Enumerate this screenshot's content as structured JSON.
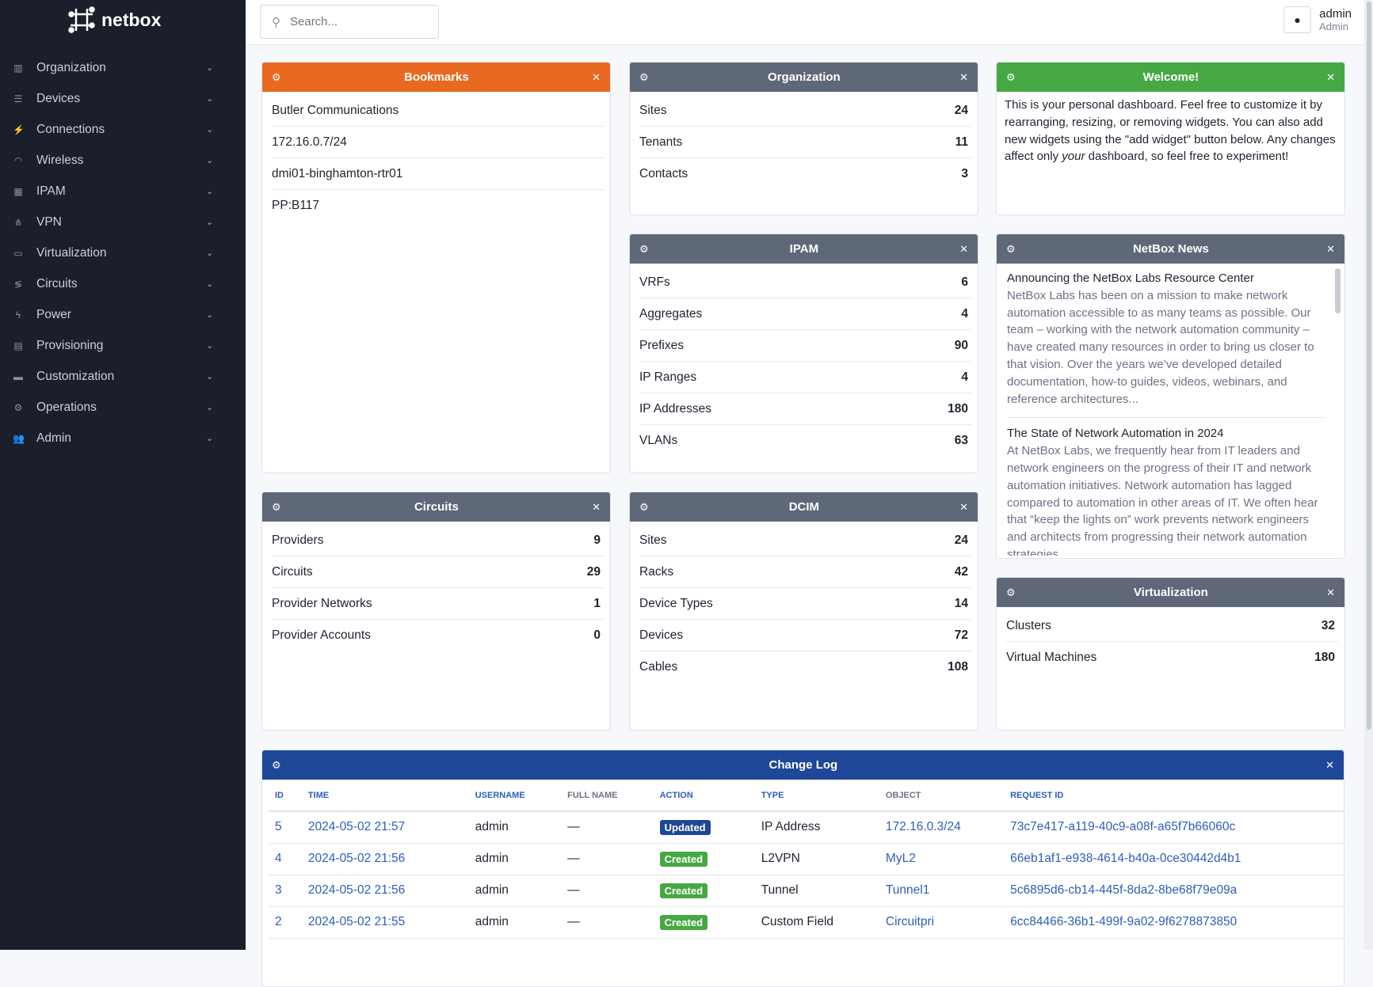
{
  "brand": {
    "name": "netbox"
  },
  "colors": {
    "sidebar": "#1b1f2b",
    "orange": "#e8691f",
    "gray": "#5f6878",
    "green": "#46a843",
    "blue": "#1f4797",
    "created": "#46a843",
    "updated": "#1f4797"
  },
  "sidebar": {
    "items": [
      {
        "label": "Organization",
        "icon": "building-icon",
        "glyph": "▥"
      },
      {
        "label": "Devices",
        "icon": "server-icon",
        "glyph": "☰"
      },
      {
        "label": "Connections",
        "icon": "plug-icon",
        "glyph": "⚡"
      },
      {
        "label": "Wireless",
        "icon": "wifi-icon",
        "glyph": "◠"
      },
      {
        "label": "IPAM",
        "icon": "ip-icon",
        "glyph": "▦"
      },
      {
        "label": "VPN",
        "icon": "network-icon",
        "glyph": "⋔"
      },
      {
        "label": "Virtualization",
        "icon": "monitor-icon",
        "glyph": "▭"
      },
      {
        "label": "Circuits",
        "icon": "circuit-icon",
        "glyph": "≶"
      },
      {
        "label": "Power",
        "icon": "power-icon",
        "glyph": "ϟ"
      },
      {
        "label": "Provisioning",
        "icon": "file-icon",
        "glyph": "▤"
      },
      {
        "label": "Customization",
        "icon": "toolbox-icon",
        "glyph": "▬"
      },
      {
        "label": "Operations",
        "icon": "cogs-icon",
        "glyph": "⚙"
      },
      {
        "label": "Admin",
        "icon": "users-icon",
        "glyph": "👥"
      }
    ]
  },
  "header": {
    "search_placeholder": "Search...",
    "username": "admin",
    "role": "Admin"
  },
  "widgets": {
    "bookmarks": {
      "title": "Bookmarks",
      "items": [
        "Butler Communications",
        "172.16.0.7/24",
        "dmi01-binghamton-rtr01",
        "PP:B117"
      ]
    },
    "organization": {
      "title": "Organization",
      "rows": [
        {
          "k": "Sites",
          "v": "24"
        },
        {
          "k": "Tenants",
          "v": "11"
        },
        {
          "k": "Contacts",
          "v": "3"
        }
      ]
    },
    "welcome": {
      "title": "Welcome!",
      "text_a": "This is your personal dashboard. Feel free to customize it by rearranging, resizing, or removing widgets. You can also add new widgets using the \"add widget\" button below. Any changes affect only ",
      "text_em": "your",
      "text_b": " dashboard, so feel free to experiment!"
    },
    "ipam": {
      "title": "IPAM",
      "rows": [
        {
          "k": "VRFs",
          "v": "6"
        },
        {
          "k": "Aggregates",
          "v": "4"
        },
        {
          "k": "Prefixes",
          "v": "90"
        },
        {
          "k": "IP Ranges",
          "v": "4"
        },
        {
          "k": "IP Addresses",
          "v": "180"
        },
        {
          "k": "VLANs",
          "v": "63"
        }
      ]
    },
    "news": {
      "title": "NetBox News",
      "items": [
        {
          "title": "Announcing the NetBox Labs Resource Center",
          "body": "NetBox Labs has been on a mission to make network automation accessible to as many teams as possible. Our team – working with the network automation community – have created many resources in order to bring us closer to that vision. Over the years we’ve developed detailed documentation, how-to guides, videos, webinars, and reference architectures..."
        },
        {
          "title": "The State of Network Automation in 2024",
          "body": "At NetBox Labs, we frequently hear from IT leaders and network engineers on the progress of their IT and network automation initiatives. Network automation has lagged compared to automation in other areas of IT. We often hear that “keep the lights on” work prevents network engineers and architects from progressing their network automation strategies."
        }
      ]
    },
    "circuits": {
      "title": "Circuits",
      "rows": [
        {
          "k": "Providers",
          "v": "9"
        },
        {
          "k": "Circuits",
          "v": "29"
        },
        {
          "k": "Provider Networks",
          "v": "1"
        },
        {
          "k": "Provider Accounts",
          "v": "0"
        }
      ]
    },
    "dcim": {
      "title": "DCIM",
      "rows": [
        {
          "k": "Sites",
          "v": "24"
        },
        {
          "k": "Racks",
          "v": "42"
        },
        {
          "k": "Device Types",
          "v": "14"
        },
        {
          "k": "Devices",
          "v": "72"
        },
        {
          "k": "Cables",
          "v": "108"
        }
      ]
    },
    "virtualization": {
      "title": "Virtualization",
      "rows": [
        {
          "k": "Clusters",
          "v": "32"
        },
        {
          "k": "Virtual Machines",
          "v": "180"
        }
      ]
    },
    "changelog": {
      "title": "Change Log",
      "columns": [
        "ID",
        "TIME",
        "USERNAME",
        "FULL NAME",
        "ACTION",
        "TYPE",
        "OBJECT",
        "REQUEST ID"
      ],
      "rows": [
        [
          "5",
          "2024-05-02 21:57",
          "admin",
          "—",
          "Updated",
          "IP Address",
          "172.16.0.3/24",
          "73c7e417-a119-40c9-a08f-a65f7b66060c"
        ],
        [
          "4",
          "2024-05-02 21:56",
          "admin",
          "—",
          "Created",
          "L2VPN",
          "MyL2",
          "66eb1af1-e938-4614-b40a-0ce30442d4b1"
        ],
        [
          "3",
          "2024-05-02 21:56",
          "admin",
          "—",
          "Created",
          "Tunnel",
          "Tunnel1",
          "5c6895d6-cb14-445f-8da2-8be68f79e09a"
        ],
        [
          "2",
          "2024-05-02 21:55",
          "admin",
          "—",
          "Created",
          "Custom Field",
          "Circuitpri",
          "6cc84466-36b1-499f-9a02-9f6278873850"
        ]
      ]
    }
  }
}
